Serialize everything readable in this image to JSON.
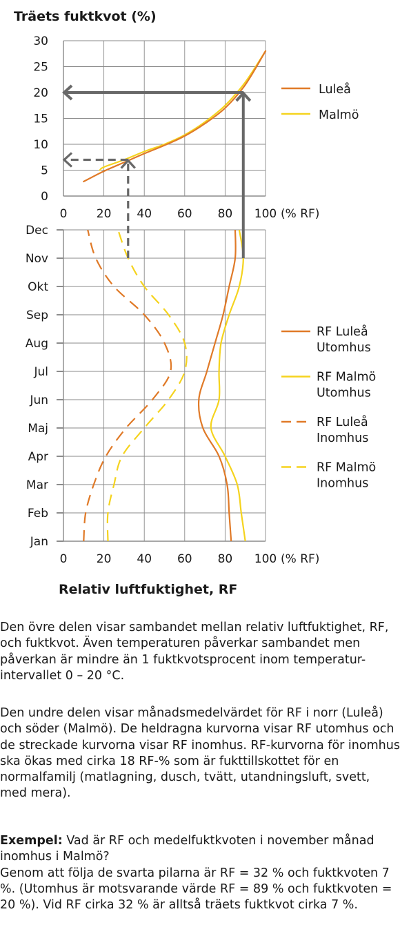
{
  "colors": {
    "lulea": "#e07a28",
    "malmo": "#f5d31e",
    "arrow": "#686868",
    "grid": "#8a8a8a"
  },
  "chart_data": [
    {
      "type": "line",
      "title": "Träets fuktkvot (%)",
      "xlabel": "(% RF)",
      "x_ticks": [
        "0",
        "20",
        "40",
        "60",
        "80",
        "100"
      ],
      "y_ticks": [
        "0",
        "5",
        "10",
        "15",
        "20",
        "25",
        "30"
      ],
      "xlim": [
        0,
        100
      ],
      "ylim": [
        0,
        30
      ],
      "grid": true,
      "legend_position": "right",
      "series": [
        {
          "name": "Luleå",
          "color_key": "lulea",
          "dash": false,
          "points": [
            [
              10,
              2.8
            ],
            [
              20,
              4.8
            ],
            [
              30,
              6.5
            ],
            [
              40,
              8.2
            ],
            [
              50,
              9.8
            ],
            [
              60,
              11.6
            ],
            [
              70,
              14
            ],
            [
              80,
              17
            ],
            [
              90,
              21.5
            ],
            [
              100,
              28
            ]
          ]
        },
        {
          "name": "Malmö",
          "color_key": "malmo",
          "dash": false,
          "points": [
            [
              18,
              5
            ],
            [
              20,
              5.6
            ],
            [
              30,
              7
            ],
            [
              40,
              8.6
            ],
            [
              50,
              10
            ],
            [
              60,
              11.8
            ],
            [
              70,
              14.3
            ],
            [
              80,
              17.5
            ],
            [
              90,
              22
            ],
            [
              100,
              28
            ]
          ]
        }
      ],
      "annotations": [
        {
          "kind": "solid-arrow",
          "rf": 89,
          "fuktkvot": 20,
          "from_month": "Nov"
        },
        {
          "kind": "dashed-arrow",
          "rf": 32,
          "fuktkvot": 7,
          "from_month": "Nov"
        }
      ]
    },
    {
      "type": "line",
      "xlabel": "(% RF)",
      "x_title": "Relativ luftfuktighet, RF",
      "x_ticks": [
        "0",
        "20",
        "40",
        "60",
        "80",
        "100"
      ],
      "xlim": [
        0,
        100
      ],
      "categories": [
        "Jan",
        "Feb",
        "Mar",
        "Apr",
        "Maj",
        "Jun",
        "Jul",
        "Aug",
        "Sep",
        "Okt",
        "Nov",
        "Dec"
      ],
      "grid": true,
      "legend_position": "right",
      "series": [
        {
          "name": "RF Luleå Utomhus",
          "color_key": "lulea",
          "dash": false,
          "values": [
            83,
            82,
            81,
            77,
            69,
            67,
            71,
            75,
            79,
            82,
            85,
            85
          ]
        },
        {
          "name": "RF Malmö Utomhus",
          "color_key": "malmo",
          "dash": false,
          "values": [
            90,
            88,
            86,
            80,
            73,
            77,
            77,
            78,
            82,
            87,
            89,
            87
          ]
        },
        {
          "name": "RF Luleå Inomhus",
          "color_key": "lulea",
          "dash": true,
          "values": [
            10,
            11,
            15,
            21,
            31,
            44,
            53,
            50,
            40,
            25,
            16,
            12
          ]
        },
        {
          "name": "RF Malmö Inomhus",
          "color_key": "malmo",
          "dash": true,
          "values": [
            22,
            22,
            25,
            29,
            40,
            52,
            60,
            60,
            52,
            40,
            32,
            27
          ]
        }
      ]
    }
  ],
  "legend_top": [
    {
      "label": "Luleå",
      "color_key": "lulea",
      "dash": false
    },
    {
      "label": "Malmö",
      "color_key": "malmo",
      "dash": false
    }
  ],
  "legend_bottom": [
    {
      "line1": "RF Luleå",
      "line2": "Utomhus",
      "color_key": "lulea",
      "dash": false
    },
    {
      "line1": "RF Malmö",
      "line2": "Utomhus",
      "color_key": "malmo",
      "dash": false
    },
    {
      "line1": "RF Luleå",
      "line2": "Inomhus",
      "color_key": "lulea",
      "dash": true
    },
    {
      "line1": "RF Malmö",
      "line2": "Inomhus",
      "color_key": "malmo",
      "dash": true
    }
  ],
  "text": {
    "p1": "Den övre delen visar sambandet mellan relativ luftfuktighet, RF, och fuktkvot. Även temperaturen påverkar sambandet men påverkan är mindre än 1 fuktkvotsprocent inom temperatur- intervallet 0 – 20 °C.",
    "p2": "Den undre delen visar månadsmedelvärdet för RF i norr (Luleå) och söder (Malmö). De heldragna kurvorna visar RF utomhus och de streckade kurvorna visar RF inomhus. RF-kurvorna för inomhus ska ökas med cirka 18 RF-% som är fukttillskottet för en normalfamilj (matlagning, dusch, tvätt, utandningsluft, svett, med mera).",
    "p3_bold": "Exempel:",
    "p3_q": " Vad är RF och medelfuktkvoten i november månad inomhus i Malmö?",
    "p3_ans": "Genom att följa de svarta pilarna är RF = 32 % och fuktkvoten 7 %. (Utomhus är motsvarande värde RF = 89 % och fuktkvoten = 20 %). Vid RF cirka 32 % är alltså träets fuktkvot cirka 7 %."
  }
}
